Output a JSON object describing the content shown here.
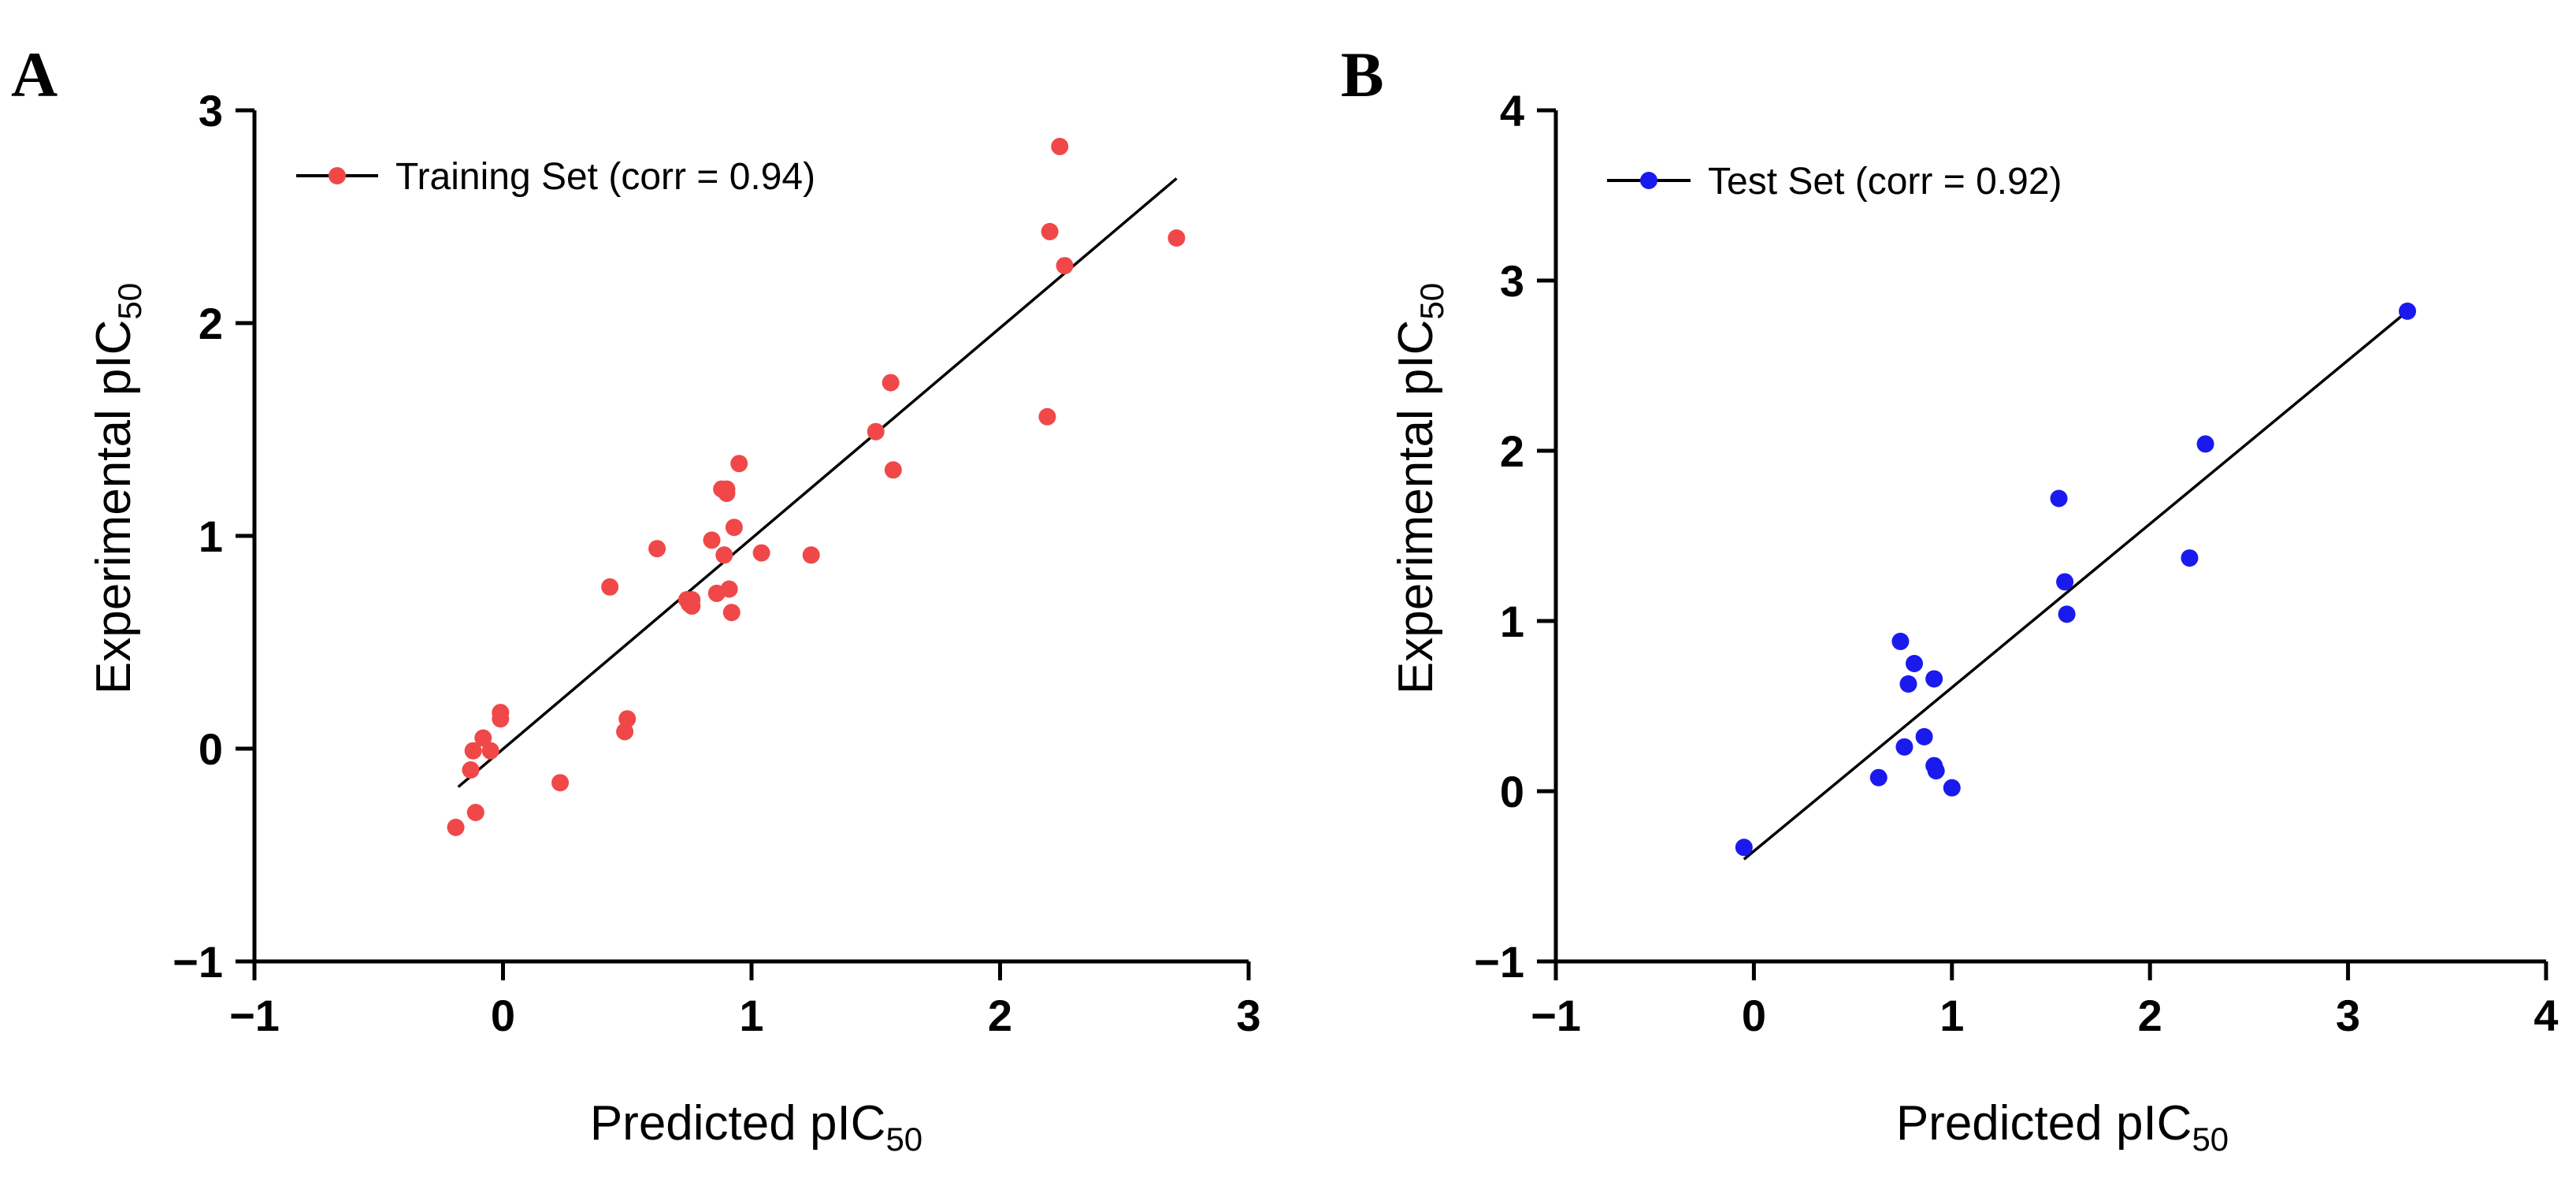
{
  "chart_data": [
    {
      "panel": "A",
      "type": "scatter",
      "series": [
        {
          "name": "Training Set (corr = 0.94)",
          "color": "#f04848",
          "points": [
            [
              -0.19,
              -0.37
            ],
            [
              -0.11,
              -0.3
            ],
            [
              -0.13,
              -0.1
            ],
            [
              -0.12,
              -0.01
            ],
            [
              -0.08,
              0.05
            ],
            [
              -0.05,
              -0.01
            ],
            [
              -0.01,
              0.17
            ],
            [
              -0.01,
              0.14
            ],
            [
              0.23,
              -0.16
            ],
            [
              0.43,
              0.76
            ],
            [
              0.49,
              0.08
            ],
            [
              0.5,
              0.14
            ],
            [
              0.62,
              0.94
            ],
            [
              0.74,
              0.7
            ],
            [
              0.75,
              0.68
            ],
            [
              0.76,
              0.67
            ],
            [
              0.76,
              0.7
            ],
            [
              0.84,
              0.98
            ],
            [
              0.86,
              0.73
            ],
            [
              0.88,
              1.22
            ],
            [
              0.89,
              0.91
            ],
            [
              0.9,
              1.2
            ],
            [
              0.9,
              1.22
            ],
            [
              0.91,
              0.75
            ],
            [
              0.92,
              0.64
            ],
            [
              0.93,
              1.04
            ],
            [
              0.95,
              1.34
            ],
            [
              1.04,
              0.92
            ],
            [
              1.24,
              0.91
            ],
            [
              1.5,
              1.49
            ],
            [
              1.56,
              1.72
            ],
            [
              1.57,
              1.31
            ],
            [
              2.19,
              1.56
            ],
            [
              2.2,
              2.43
            ],
            [
              2.24,
              2.83
            ],
            [
              2.26,
              2.27
            ],
            [
              2.71,
              2.4
            ]
          ]
        }
      ],
      "fit_line": {
        "x": [
          -0.18,
          2.71
        ],
        "y": [
          -0.18,
          2.68
        ]
      },
      "title": "",
      "xlabel": "Predicted pIC",
      "xlabel_sub": "50",
      "ylabel": "Experimental pIC",
      "ylabel_sub": "50",
      "xlim": [
        -1,
        3
      ],
      "ylim": [
        -1,
        3
      ],
      "xticks": [
        "−1",
        "0",
        "1",
        "2",
        "3"
      ],
      "yticks": [
        "−1",
        "0",
        "1",
        "2",
        "3"
      ],
      "legend_position": "top-left",
      "grid": false
    },
    {
      "panel": "B",
      "type": "scatter",
      "series": [
        {
          "name": "Test Set (corr = 0.92)",
          "color": "#1a1aee",
          "points": [
            [
              -0.05,
              -0.33
            ],
            [
              0.63,
              0.08
            ],
            [
              0.74,
              0.88
            ],
            [
              0.76,
              0.26
            ],
            [
              0.78,
              0.63
            ],
            [
              0.81,
              0.75
            ],
            [
              0.86,
              0.32
            ],
            [
              0.91,
              0.66
            ],
            [
              0.91,
              0.15
            ],
            [
              0.92,
              0.12
            ],
            [
              1.0,
              0.02
            ],
            [
              1.54,
              1.72
            ],
            [
              1.57,
              1.23
            ],
            [
              1.58,
              1.04
            ],
            [
              2.2,
              1.37
            ],
            [
              2.28,
              2.04
            ],
            [
              3.3,
              2.82
            ]
          ]
        }
      ],
      "fit_line": {
        "x": [
          -0.05,
          3.3
        ],
        "y": [
          -0.4,
          2.82
        ]
      },
      "title": "",
      "xlabel": "Predicted pIC",
      "xlabel_sub": "50",
      "ylabel": "Experimental pIC",
      "ylabel_sub": "50",
      "xlim": [
        -1,
        4
      ],
      "ylim": [
        -1,
        4
      ],
      "xticks": [
        "−1",
        "0",
        "1",
        "2",
        "3",
        "4"
      ],
      "yticks": [
        "−1",
        "0",
        "1",
        "2",
        "3",
        "4"
      ],
      "legend_position": "top-left",
      "grid": false
    }
  ]
}
